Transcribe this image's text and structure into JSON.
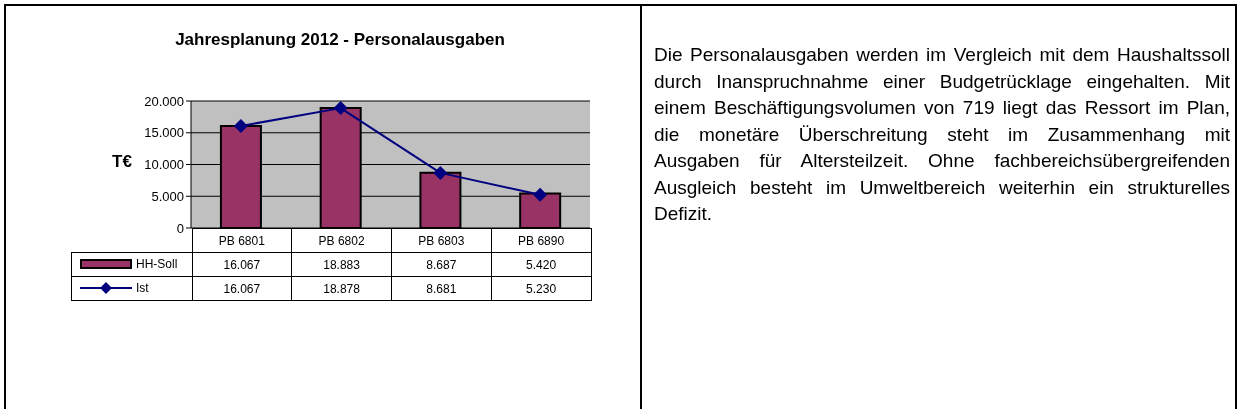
{
  "chart_data": {
    "type": "bar",
    "title": "Jahresplanung 2012 - Personalausgaben",
    "ylabel": "T€",
    "categories": [
      "PB 6801",
      "PB 6802",
      "PB 6803",
      "PB 6890"
    ],
    "series": [
      {
        "name": "HH-Soll",
        "color": "#993366",
        "values": [
          16067,
          18883,
          8687,
          5420
        ],
        "value_labels": [
          "16.067",
          "18.883",
          "8.687",
          "5.420"
        ]
      },
      {
        "name": "Ist",
        "type": "line",
        "color": "#000080",
        "marker": "diamond",
        "values": [
          16067,
          18878,
          8681,
          5230
        ],
        "value_labels": [
          "16.067",
          "18.878",
          "8.681",
          "5.230"
        ]
      }
    ],
    "ylim": [
      0,
      20000
    ],
    "yticks": [
      {
        "value": 0,
        "label": "0"
      },
      {
        "value": 5000,
        "label": "5.000"
      },
      {
        "value": 10000,
        "label": "10.000"
      },
      {
        "value": 15000,
        "label": "15.000"
      },
      {
        "value": 20000,
        "label": "20.000"
      }
    ],
    "grid": "y",
    "legend": "bottom",
    "annotations": [
      "Die Personalausgaben werden im Vergleich mit dem Haushaltssoll durch Inanspruchnahme einer Budgetrücklage eingehalten. Mit einem Beschäftigungsvolumen von 719 liegt das Ressort im Plan, die monetäre Überschreitung steht im Zusammenhang mit Ausgaben für Altersteilzeit. Ohne fachbereichsübergreifenden Ausgleich besteht im Umweltbereich weiterhin ein strukturelles Defizit."
    ]
  }
}
